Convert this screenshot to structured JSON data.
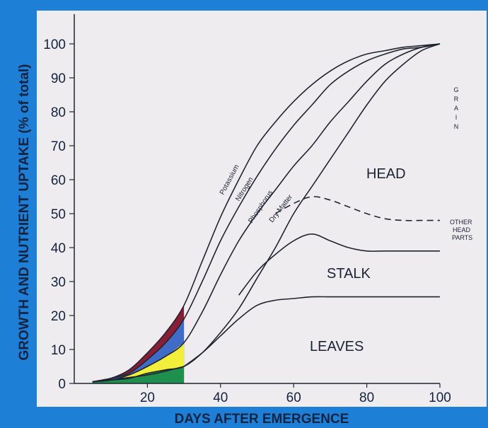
{
  "colors": {
    "background": "#1e7fd6",
    "plot_bg": "#efecf0",
    "ink": "#1f2430",
    "potassium_fill": "#8b1d34",
    "nitrogen_fill": "#3f6cc6",
    "phosphorus_fill": "#f2ef3a",
    "dry_matter_fill": "#1f8f4e"
  },
  "chart_data": {
    "type": "line",
    "title": "",
    "xlabel": "DAYS AFTER EMERGENCE",
    "ylabel": "GROWTH AND NUTRIENT UPTAKE (% of total)",
    "xlim": [
      0,
      100
    ],
    "ylim": [
      0,
      105
    ],
    "xticks": [
      20,
      40,
      60,
      80,
      100
    ],
    "yticks": [
      0,
      10,
      20,
      30,
      40,
      50,
      60,
      70,
      80,
      90,
      100
    ],
    "grid": false,
    "series": [
      {
        "name": "Potassium",
        "x": [
          5,
          10,
          15,
          20,
          25,
          30,
          35,
          40,
          45,
          50,
          55,
          60,
          65,
          70,
          75,
          80,
          85,
          90,
          95,
          100
        ],
        "y": [
          0.5,
          1.5,
          4,
          9,
          15,
          23,
          36,
          49,
          60,
          70,
          77,
          83,
          88,
          92,
          95,
          97,
          98,
          99,
          99.5,
          100
        ]
      },
      {
        "name": "Nitrogen",
        "x": [
          5,
          10,
          15,
          20,
          25,
          30,
          35,
          40,
          45,
          50,
          55,
          60,
          65,
          70,
          75,
          80,
          85,
          90,
          95,
          100
        ],
        "y": [
          0.5,
          1.5,
          3,
          7,
          12,
          19,
          30,
          42,
          52,
          61,
          69,
          76,
          82,
          88,
          92,
          95,
          97,
          98.5,
          99,
          100
        ]
      },
      {
        "name": "Phosphorus",
        "x": [
          5,
          10,
          15,
          20,
          25,
          30,
          35,
          40,
          45,
          50,
          55,
          60,
          65,
          70,
          75,
          80,
          85,
          90,
          95,
          100
        ],
        "y": [
          0.5,
          1,
          2.5,
          5,
          8,
          12,
          21,
          32,
          42,
          50,
          57,
          64,
          70,
          77,
          83,
          89,
          94,
          97,
          99,
          100
        ]
      },
      {
        "name": "Dry Matter",
        "x": [
          5,
          10,
          15,
          20,
          25,
          30,
          35,
          40,
          45,
          50,
          55,
          60,
          65,
          70,
          75,
          80,
          85,
          90,
          95,
          100
        ],
        "y": [
          0.5,
          1,
          1.5,
          3,
          4,
          5,
          9,
          15,
          22,
          31,
          40,
          50,
          58,
          66,
          74,
          82,
          89,
          94,
          98,
          100
        ]
      },
      {
        "name": "OTHER HEAD PARTS",
        "x": [
          55,
          60,
          65,
          70,
          75,
          80,
          85,
          90,
          95,
          100
        ],
        "y": [
          50,
          53,
          55,
          54,
          52,
          50,
          48.5,
          48,
          48,
          48
        ]
      },
      {
        "name": "STALK",
        "x": [
          45,
          50,
          55,
          60,
          65,
          70,
          75,
          80,
          85,
          90,
          95,
          100
        ],
        "y": [
          26,
          33,
          38,
          42,
          44,
          42,
          40,
          39,
          39,
          39,
          39,
          39
        ]
      },
      {
        "name": "LEAVES",
        "x": [
          30,
          35,
          40,
          45,
          50,
          55,
          60,
          65,
          70,
          75,
          80,
          85,
          90,
          95,
          100
        ],
        "y": [
          5,
          9,
          14,
          19,
          23,
          24.5,
          25,
          25.5,
          25.5,
          25.5,
          25.5,
          25.5,
          25.5,
          25.5,
          25.5
        ]
      }
    ],
    "region_labels": [
      "HEAD",
      "STALK",
      "LEAVES"
    ],
    "side_labels": {
      "grain": "GRAIN",
      "other_head_parts": [
        "OTHER",
        "HEAD",
        "PARTS"
      ]
    },
    "curve_labels": [
      "Potassium",
      "Nitrogen",
      "Phosphorus",
      "Dry Matter"
    ]
  }
}
